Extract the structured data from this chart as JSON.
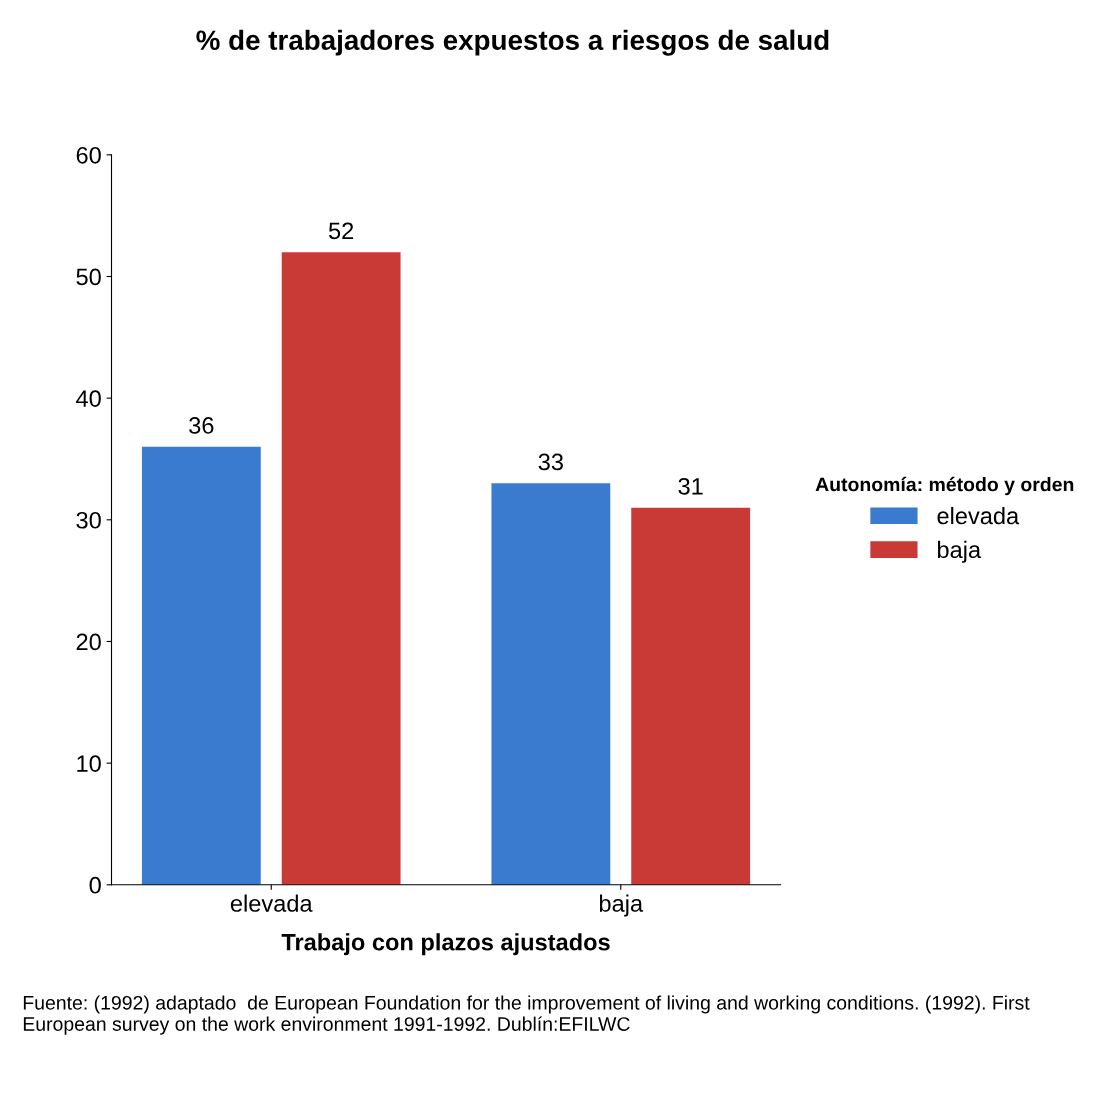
{
  "chart_data": {
    "type": "bar",
    "title": "% de trabajadores expuestos a riesgos de salud",
    "xlabel": "Trabajo con plazos ajustados",
    "legend_title": "Autonomía: método y orden",
    "categories": [
      "elevada",
      "baja"
    ],
    "series": [
      {
        "name": "elevada",
        "color": "#3a7bd0",
        "values": [
          36,
          33
        ]
      },
      {
        "name": "baja",
        "color": "#c93a36",
        "values": [
          52,
          31
        ]
      }
    ],
    "ylim": [
      0,
      60
    ],
    "yticks": [
      0,
      10,
      20,
      30,
      40,
      50,
      60
    ],
    "grid": false,
    "legend": "right",
    "data_labels": true,
    "annotations": [
      "Fuente: (1992) adaptado  de European Foundation for the improvement of living and working conditions. (1992). First European survey on the work environment 1991-1992. Dublín:EFILWC"
    ]
  }
}
